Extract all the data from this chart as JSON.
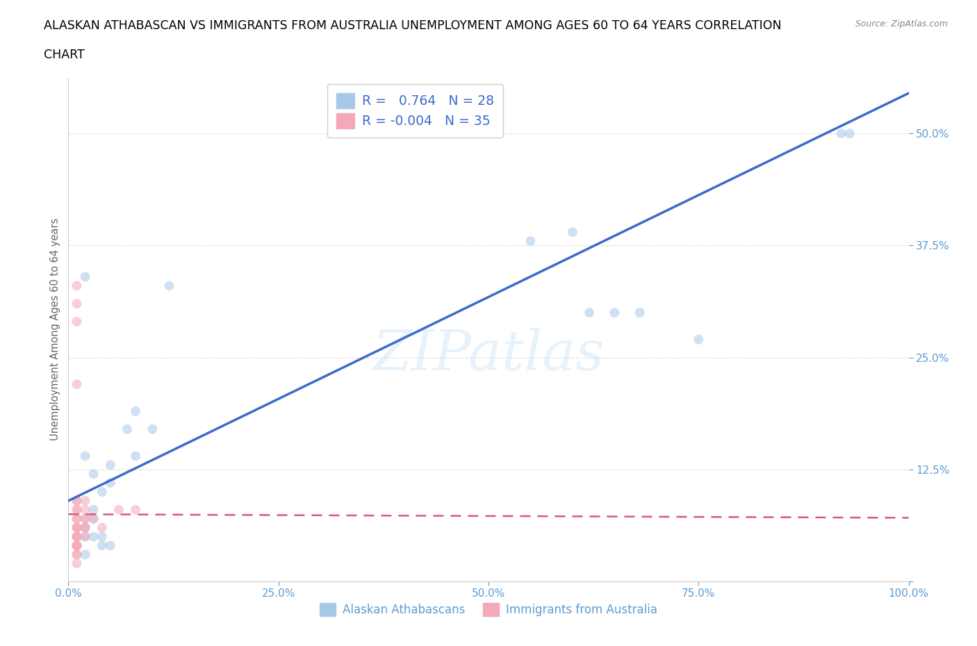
{
  "title": "ALASKAN ATHABASCAN VS IMMIGRANTS FROM AUSTRALIA UNEMPLOYMENT AMONG AGES 60 TO 64 YEARS CORRELATION\nCHART",
  "source": "Source: ZipAtlas.com",
  "ylabel": "Unemployment Among Ages 60 to 64 years",
  "watermark": "ZIPatlas",
  "blue_R": "0.764",
  "blue_N": "28",
  "pink_R": "-0.004",
  "pink_N": "35",
  "legend_label_blue": "Alaskan Athabascans",
  "legend_label_pink": "Immigrants from Australia",
  "blue_color": "#a8c8e8",
  "pink_color": "#f4a8b8",
  "blue_line_color": "#3b6bcc",
  "pink_line_color": "#d85878",
  "axis_color": "#5b9bd5",
  "ylabel_color": "#666666",
  "grid_color": "#dddddd",
  "blue_scatter_x": [
    0.02,
    0.04,
    0.04,
    0.02,
    0.05,
    0.03,
    0.03,
    0.02,
    0.04,
    0.03,
    0.02,
    0.05,
    0.02,
    0.03,
    0.08,
    0.1,
    0.12,
    0.05,
    0.08,
    0.07,
    0.55,
    0.62,
    0.6,
    0.65,
    0.68,
    0.75,
    0.92,
    0.93
  ],
  "blue_scatter_y": [
    0.34,
    0.1,
    0.05,
    0.14,
    0.04,
    0.12,
    0.08,
    0.06,
    0.04,
    0.07,
    0.05,
    0.11,
    0.03,
    0.05,
    0.14,
    0.17,
    0.33,
    0.13,
    0.19,
    0.17,
    0.38,
    0.3,
    0.39,
    0.3,
    0.3,
    0.27,
    0.5,
    0.5
  ],
  "pink_scatter_x": [
    0.01,
    0.01,
    0.01,
    0.01,
    0.01,
    0.01,
    0.01,
    0.01,
    0.01,
    0.01,
    0.01,
    0.01,
    0.01,
    0.01,
    0.01,
    0.01,
    0.01,
    0.01,
    0.01,
    0.01,
    0.02,
    0.02,
    0.02,
    0.02,
    0.02,
    0.02,
    0.02,
    0.03,
    0.04,
    0.06,
    0.08,
    0.01,
    0.01,
    0.01,
    0.01
  ],
  "pink_scatter_y": [
    0.04,
    0.05,
    0.06,
    0.07,
    0.08,
    0.09,
    0.04,
    0.05,
    0.06,
    0.07,
    0.08,
    0.09,
    0.04,
    0.05,
    0.03,
    0.04,
    0.05,
    0.06,
    0.02,
    0.03,
    0.07,
    0.06,
    0.05,
    0.08,
    0.09,
    0.06,
    0.07,
    0.07,
    0.06,
    0.08,
    0.08,
    0.22,
    0.31,
    0.33,
    0.29
  ],
  "xlim": [
    0.0,
    1.0
  ],
  "ylim": [
    0.0,
    0.5625
  ],
  "xticks": [
    0.0,
    0.25,
    0.5,
    0.75,
    1.0
  ],
  "yticks": [
    0.0,
    0.125,
    0.25,
    0.375,
    0.5
  ],
  "ytick_labels": [
    "",
    "12.5%",
    "25.0%",
    "37.5%",
    "50.0%"
  ],
  "blue_line_x0": 0.0,
  "blue_line_x1": 1.0,
  "blue_line_y0": 0.09,
  "blue_line_y1": 0.545,
  "pink_line_x0": 0.0,
  "pink_line_x1": 1.0,
  "pink_line_y0": 0.075,
  "pink_line_y1": 0.071,
  "marker_size": 100,
  "marker_alpha": 0.55,
  "title_fontsize": 12.5,
  "axis_fontsize": 10.5,
  "tick_fontsize": 11
}
